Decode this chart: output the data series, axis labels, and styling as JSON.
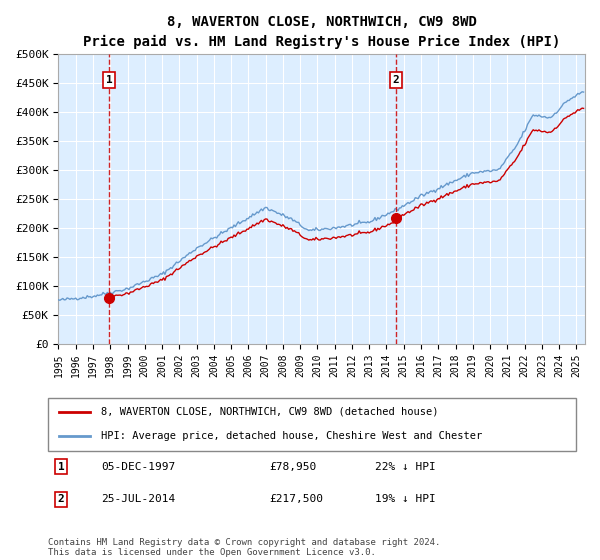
{
  "title": "8, WAVERTON CLOSE, NORTHWICH, CW9 8WD",
  "subtitle": "Price paid vs. HM Land Registry's House Price Index (HPI)",
  "ylim": [
    0,
    500000
  ],
  "yticks": [
    0,
    50000,
    100000,
    150000,
    200000,
    250000,
    300000,
    350000,
    400000,
    450000,
    500000
  ],
  "ytick_labels": [
    "£0",
    "£50K",
    "£100K",
    "£150K",
    "£200K",
    "£250K",
    "£300K",
    "£350K",
    "£400K",
    "£450K",
    "£500K"
  ],
  "xlim_start": 1995.0,
  "xlim_end": 2025.5,
  "xtick_years": [
    1995,
    1996,
    1997,
    1998,
    1999,
    2000,
    2001,
    2002,
    2003,
    2004,
    2005,
    2006,
    2007,
    2008,
    2009,
    2010,
    2011,
    2012,
    2013,
    2014,
    2015,
    2016,
    2017,
    2018,
    2019,
    2020,
    2021,
    2022,
    2023,
    2024,
    2025
  ],
  "sale1_x": 1997.92,
  "sale1_y": 78950,
  "sale1_label": "1",
  "sale1_date": "05-DEC-1997",
  "sale1_price": "£78,950",
  "sale1_hpi": "22% ↓ HPI",
  "sale2_x": 2014.56,
  "sale2_y": 217500,
  "sale2_label": "2",
  "sale2_date": "25-JUL-2014",
  "sale2_price": "£217,500",
  "sale2_hpi": "19% ↓ HPI",
  "line_color_property": "#cc0000",
  "line_color_hpi": "#6699cc",
  "background_color": "#ddeeff",
  "legend_label_property": "8, WAVERTON CLOSE, NORTHWICH, CW9 8WD (detached house)",
  "legend_label_hpi": "HPI: Average price, detached house, Cheshire West and Chester",
  "footer": "Contains HM Land Registry data © Crown copyright and database right 2024.\nThis data is licensed under the Open Government Licence v3.0.",
  "hpi_keypoints_x": [
    1995.0,
    1997.0,
    1999.0,
    2001.0,
    2003.0,
    2005.0,
    2007.0,
    2008.5,
    2009.5,
    2011.0,
    2013.0,
    2014.5,
    2016.0,
    2017.5,
    2019.0,
    2020.5,
    2021.5,
    2022.5,
    2023.5,
    2024.5,
    2025.4
  ],
  "hpi_keypoints_y": [
    75000,
    82000,
    95000,
    120000,
    165000,
    200000,
    235000,
    215000,
    195000,
    200000,
    210000,
    230000,
    255000,
    275000,
    295000,
    300000,
    340000,
    395000,
    390000,
    420000,
    435000
  ]
}
